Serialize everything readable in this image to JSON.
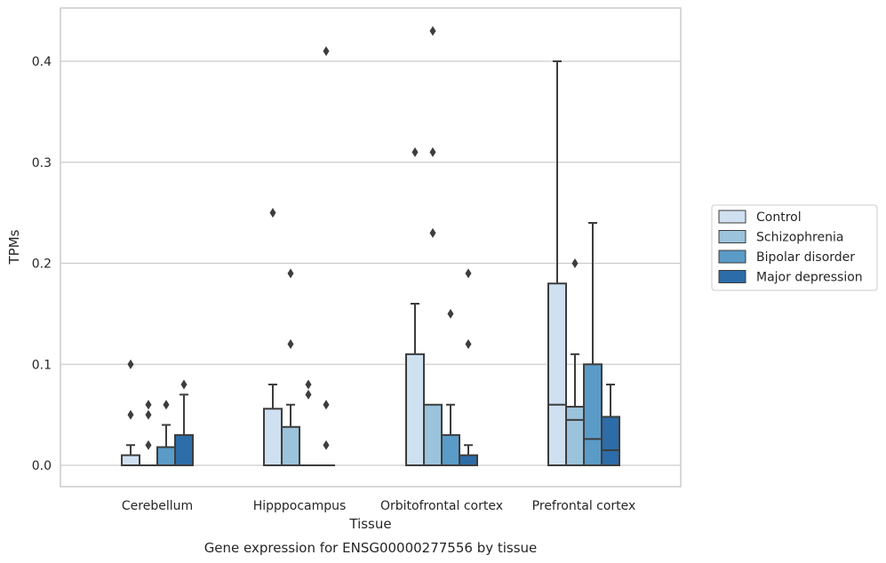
{
  "chart_data": {
    "type": "box",
    "title": "",
    "caption": "Gene expression for ENSG00000277556 by tissue",
    "xlabel": "Tissue",
    "ylabel": "TPMs",
    "ylim": [
      -0.02,
      0.455
    ],
    "yticks": [
      0.0,
      0.1,
      0.2,
      0.3,
      0.4
    ],
    "ytick_labels": [
      "0.0",
      "0.1",
      "0.2",
      "0.3",
      "0.4"
    ],
    "grid": "horizontal",
    "legend_position": "right",
    "categories": [
      "Cerebellum",
      "Hipppocampus",
      "Orbitofrontal cortex",
      "Prefrontal cortex"
    ],
    "series": [
      {
        "name": "Control",
        "color": "#cfe0f1",
        "boxes": [
          {
            "q1": 0.0,
            "median": 0.0,
            "q3": 0.01,
            "whisker_low": 0.0,
            "whisker_high": 0.02,
            "outliers": [
              0.05,
              0.1
            ]
          },
          {
            "q1": 0.0,
            "median": 0.0,
            "q3": 0.056,
            "whisker_low": 0.0,
            "whisker_high": 0.08,
            "outliers": [
              0.25
            ]
          },
          {
            "q1": 0.0,
            "median": 0.0,
            "q3": 0.11,
            "whisker_low": 0.0,
            "whisker_high": 0.16,
            "outliers": [
              0.31
            ]
          },
          {
            "q1": 0.0,
            "median": 0.06,
            "q3": 0.18,
            "whisker_low": 0.0,
            "whisker_high": 0.4,
            "outliers": []
          }
        ]
      },
      {
        "name": "Schizophrenia",
        "color": "#9bc3db",
        "boxes": [
          {
            "q1": 0.0,
            "median": 0.0,
            "q3": 0.0,
            "whisker_low": 0.0,
            "whisker_high": 0.0,
            "outliers": [
              0.02,
              0.05,
              0.06
            ]
          },
          {
            "q1": 0.0,
            "median": 0.0,
            "q3": 0.038,
            "whisker_low": 0.0,
            "whisker_high": 0.06,
            "outliers": [
              0.12,
              0.19
            ]
          },
          {
            "q1": 0.0,
            "median": 0.0,
            "q3": 0.06,
            "whisker_low": 0.0,
            "whisker_high": 0.06,
            "outliers": [
              0.23,
              0.31,
              0.43
            ]
          },
          {
            "q1": 0.0,
            "median": 0.045,
            "q3": 0.058,
            "whisker_low": 0.0,
            "whisker_high": 0.11,
            "outliers": [
              0.2
            ]
          }
        ]
      },
      {
        "name": "Bipolar disorder",
        "color": "#5b9bc8",
        "boxes": [
          {
            "q1": 0.0,
            "median": 0.0,
            "q3": 0.018,
            "whisker_low": 0.0,
            "whisker_high": 0.04,
            "outliers": [
              0.06
            ]
          },
          {
            "q1": 0.0,
            "median": 0.0,
            "q3": 0.0,
            "whisker_low": 0.0,
            "whisker_high": 0.0,
            "outliers": [
              0.07,
              0.08
            ]
          },
          {
            "q1": 0.0,
            "median": 0.0,
            "q3": 0.03,
            "whisker_low": 0.0,
            "whisker_high": 0.06,
            "outliers": [
              0.15
            ]
          },
          {
            "q1": 0.0,
            "median": 0.026,
            "q3": 0.1,
            "whisker_low": 0.0,
            "whisker_high": 0.24,
            "outliers": []
          }
        ]
      },
      {
        "name": "Major depression",
        "color": "#2c6ca8",
        "boxes": [
          {
            "q1": 0.0,
            "median": 0.0,
            "q3": 0.03,
            "whisker_low": 0.0,
            "whisker_high": 0.07,
            "outliers": [
              0.08
            ]
          },
          {
            "q1": 0.0,
            "median": 0.0,
            "q3": 0.0,
            "whisker_low": 0.0,
            "whisker_high": 0.0,
            "outliers": [
              0.02,
              0.06,
              0.41
            ]
          },
          {
            "q1": 0.0,
            "median": 0.0,
            "q3": 0.01,
            "whisker_low": 0.0,
            "whisker_high": 0.02,
            "outliers": [
              0.12,
              0.19
            ]
          },
          {
            "q1": 0.0,
            "median": 0.015,
            "q3": 0.048,
            "whisker_low": 0.0,
            "whisker_high": 0.08,
            "outliers": []
          }
        ]
      }
    ]
  }
}
